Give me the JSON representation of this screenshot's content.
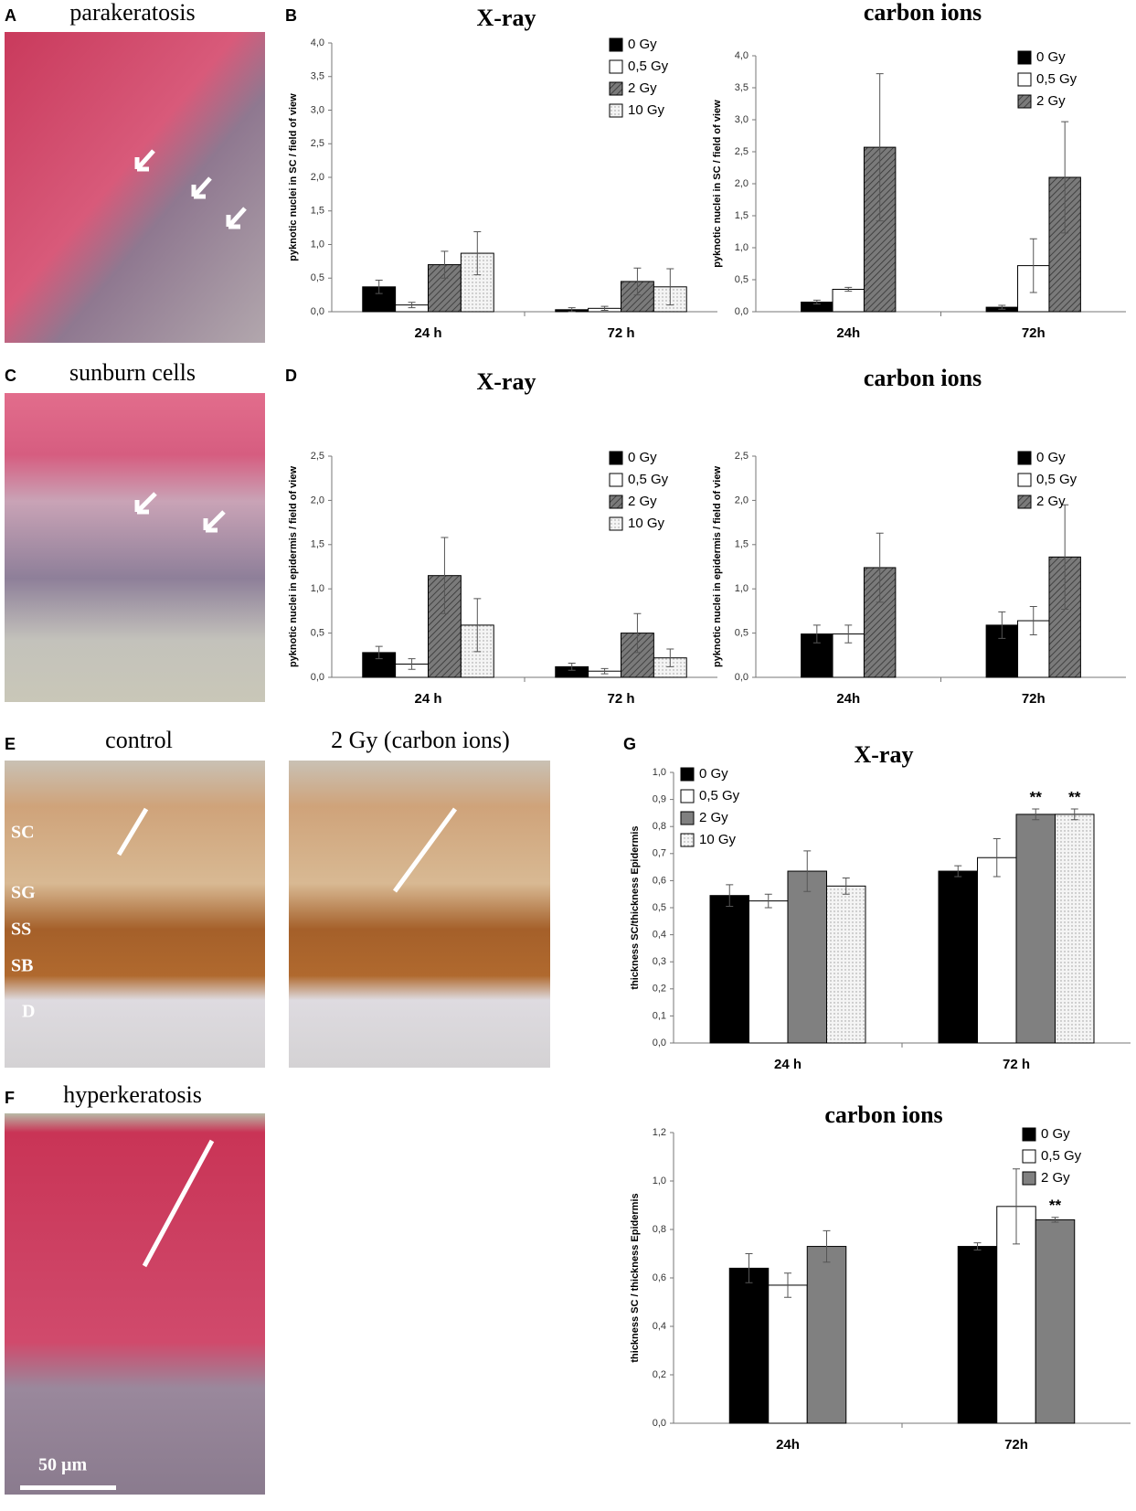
{
  "panels": {
    "letters": [
      "A",
      "B",
      "C",
      "D",
      "E",
      "G",
      "F"
    ],
    "captions": {
      "a": "parakeratosis",
      "c": "sunburn cells",
      "e_left": "control",
      "e_right": "2 Gy (carbon ions)",
      "f": "hyperkeratosis"
    },
    "layers": [
      "SC",
      "SG",
      "SS",
      "SB",
      "D"
    ],
    "scale_bar": "50 µm"
  },
  "chart_data": [
    {
      "type": "bar",
      "title": "X-ray",
      "y_label": "pyknotic nuclei in SC / field of view",
      "legend": "upper right",
      "categories": [
        "24 h",
        "72 h"
      ],
      "ylim": [
        0,
        4
      ],
      "yticks": [
        {
          "value": 0,
          "label": "0,0"
        },
        {
          "value": 0.5,
          "label": "0,5"
        },
        {
          "value": 1,
          "label": "1,0"
        },
        {
          "value": 1.5,
          "label": "1,5"
        },
        {
          "value": 2,
          "label": "2,0"
        },
        {
          "value": 2.5,
          "label": "2,5"
        },
        {
          "value": 3,
          "label": "3,0"
        },
        {
          "value": 3.5,
          "label": "3,5"
        },
        {
          "value": 4,
          "label": "4,0"
        }
      ],
      "series": [
        {
          "name": "0 Gy",
          "color": "#000000",
          "pattern": "solid",
          "values": [
            0.37,
            0.03
          ],
          "errors": [
            0.1,
            0.03
          ]
        },
        {
          "name": "0,5 Gy",
          "color": "#ffffff",
          "pattern": "solid",
          "values": [
            0.1,
            0.05
          ],
          "errors": [
            0.04,
            0.03
          ]
        },
        {
          "name": "2 Gy",
          "color": "#808080",
          "pattern": "hatch",
          "values": [
            0.7,
            0.45
          ],
          "errors": [
            0.2,
            0.2
          ]
        },
        {
          "name": "10 Gy",
          "color": "#f2f2f2",
          "pattern": "dots",
          "values": [
            0.87,
            0.37
          ],
          "errors": [
            0.32,
            0.27
          ]
        }
      ]
    },
    {
      "type": "bar",
      "title": "carbon ions",
      "y_label": "pyknotic nuclei in SC / field of view",
      "legend": "upper right",
      "categories": [
        "24h",
        "72h"
      ],
      "ylim": [
        0,
        4
      ],
      "yticks": [
        {
          "value": 0,
          "label": "0,0"
        },
        {
          "value": 0.5,
          "label": "0,5"
        },
        {
          "value": 1,
          "label": "1,0"
        },
        {
          "value": 1.5,
          "label": "1,5"
        },
        {
          "value": 2,
          "label": "2,0"
        },
        {
          "value": 2.5,
          "label": "2,5"
        },
        {
          "value": 3,
          "label": "3,0"
        },
        {
          "value": 3.5,
          "label": "3,5"
        },
        {
          "value": 4,
          "label": "4,0"
        }
      ],
      "series": [
        {
          "name": "0 Gy",
          "color": "#000000",
          "pattern": "solid",
          "values": [
            0.15,
            0.07
          ],
          "errors": [
            0.03,
            0.03
          ]
        },
        {
          "name": "0,5 Gy",
          "color": "#ffffff",
          "pattern": "solid",
          "values": [
            0.35,
            0.72
          ],
          "errors": [
            0.03,
            0.42
          ]
        },
        {
          "name": "2 Gy",
          "color": "#808080",
          "pattern": "hatch",
          "values": [
            2.57,
            2.1
          ],
          "errors": [
            1.15,
            0.87
          ]
        }
      ]
    },
    {
      "type": "bar",
      "title": "X-ray",
      "y_label": "pyknotic nuclei in epidermis / field of view",
      "legend": "upper right",
      "categories": [
        "24 h",
        "72 h"
      ],
      "ylim": [
        0,
        2.5
      ],
      "yticks": [
        {
          "value": 0,
          "label": "0,0"
        },
        {
          "value": 0.5,
          "label": "0,5"
        },
        {
          "value": 1,
          "label": "1,0"
        },
        {
          "value": 1.5,
          "label": "1,5"
        },
        {
          "value": 2,
          "label": "2,0"
        },
        {
          "value": 2.5,
          "label": "2,5"
        }
      ],
      "series": [
        {
          "name": "0 Gy",
          "color": "#000000",
          "pattern": "solid",
          "values": [
            0.28,
            0.12
          ],
          "errors": [
            0.07,
            0.04
          ]
        },
        {
          "name": "0,5 Gy",
          "color": "#ffffff",
          "pattern": "solid",
          "values": [
            0.15,
            0.07
          ],
          "errors": [
            0.06,
            0.03
          ]
        },
        {
          "name": "2 Gy",
          "color": "#808080",
          "pattern": "hatch",
          "values": [
            1.15,
            0.5
          ],
          "errors": [
            0.43,
            0.22
          ]
        },
        {
          "name": "10 Gy",
          "color": "#f2f2f2",
          "pattern": "dots",
          "values": [
            0.59,
            0.22
          ],
          "errors": [
            0.3,
            0.1
          ]
        }
      ]
    },
    {
      "type": "bar",
      "title": "carbon ions",
      "y_label": "pyknotic nuclei in epidermis / field of view",
      "legend": "upper right",
      "categories": [
        "24h",
        "72h"
      ],
      "ylim": [
        0,
        2.5
      ],
      "yticks": [
        {
          "value": 0,
          "label": "0,0"
        },
        {
          "value": 0.5,
          "label": "0,5"
        },
        {
          "value": 1,
          "label": "1,0"
        },
        {
          "value": 1.5,
          "label": "1,5"
        },
        {
          "value": 2,
          "label": "2,0"
        },
        {
          "value": 2.5,
          "label": "2,5"
        }
      ],
      "series": [
        {
          "name": "0 Gy",
          "color": "#000000",
          "pattern": "solid",
          "values": [
            0.49,
            0.59
          ],
          "errors": [
            0.1,
            0.15
          ]
        },
        {
          "name": "0,5 Gy",
          "color": "#ffffff",
          "pattern": "solid",
          "values": [
            0.49,
            0.64
          ],
          "errors": [
            0.1,
            0.16
          ]
        },
        {
          "name": "2 Gy",
          "color": "#808080",
          "pattern": "hatch",
          "values": [
            1.24,
            1.36
          ],
          "errors": [
            0.39,
            0.59
          ]
        }
      ]
    },
    {
      "type": "bar",
      "title": "X-ray",
      "y_label": "thickness SC/thickness Epidermis",
      "legend": "upper left",
      "categories": [
        "24 h",
        "72 h"
      ],
      "ylim": [
        0,
        1
      ],
      "yticks": [
        {
          "value": 0,
          "label": "0,0"
        },
        {
          "value": 0.1,
          "label": "0,1"
        },
        {
          "value": 0.2,
          "label": "0,2"
        },
        {
          "value": 0.3,
          "label": "0,3"
        },
        {
          "value": 0.4,
          "label": "0,4"
        },
        {
          "value": 0.5,
          "label": "0,5"
        },
        {
          "value": 0.6,
          "label": "0,6"
        },
        {
          "value": 0.7,
          "label": "0,7"
        },
        {
          "value": 0.8,
          "label": "0,8"
        },
        {
          "value": 0.9,
          "label": "0,9"
        },
        {
          "value": 1,
          "label": "1,0"
        }
      ],
      "series": [
        {
          "name": "0 Gy",
          "color": "#000000",
          "pattern": "solid",
          "values": [
            0.545,
            0.635
          ],
          "errors": [
            0.04,
            0.02
          ]
        },
        {
          "name": "0,5 Gy",
          "color": "#ffffff",
          "pattern": "solid",
          "values": [
            0.525,
            0.685
          ],
          "errors": [
            0.025,
            0.07
          ]
        },
        {
          "name": "2 Gy",
          "color": "#808080",
          "pattern": "solid",
          "values": [
            0.635,
            0.845
          ],
          "errors": [
            0.075,
            0.02
          ],
          "annotations": [
            null,
            "**"
          ]
        },
        {
          "name": "10 Gy",
          "color": "#f2f2f2",
          "pattern": "dots",
          "values": [
            0.58,
            0.845
          ],
          "errors": [
            0.03,
            0.02
          ],
          "annotations": [
            null,
            "**"
          ]
        }
      ]
    },
    {
      "type": "bar",
      "title": "carbon ions",
      "y_label": "thickness SC / thickness Epidermis",
      "legend": "upper right",
      "categories": [
        "24h",
        "72h"
      ],
      "ylim": [
        0,
        1.2
      ],
      "yticks": [
        {
          "value": 0,
          "label": "0,0"
        },
        {
          "value": 0.2,
          "label": "0,2"
        },
        {
          "value": 0.4,
          "label": "0,4"
        },
        {
          "value": 0.6,
          "label": "0,6"
        },
        {
          "value": 0.8,
          "label": "0,8"
        },
        {
          "value": 1,
          "label": "1,0"
        },
        {
          "value": 1.2,
          "label": "1,2"
        }
      ],
      "series": [
        {
          "name": "0 Gy",
          "color": "#000000",
          "pattern": "solid",
          "values": [
            0.64,
            0.73
          ],
          "errors": [
            0.06,
            0.015
          ]
        },
        {
          "name": "0,5 Gy",
          "color": "#ffffff",
          "pattern": "solid",
          "values": [
            0.57,
            0.895
          ],
          "errors": [
            0.05,
            0.155
          ]
        },
        {
          "name": "2 Gy",
          "color": "#808080",
          "pattern": "solid",
          "values": [
            0.73,
            0.84
          ],
          "errors": [
            0.065,
            0.01
          ],
          "annotations": [
            null,
            "**"
          ]
        }
      ]
    }
  ]
}
